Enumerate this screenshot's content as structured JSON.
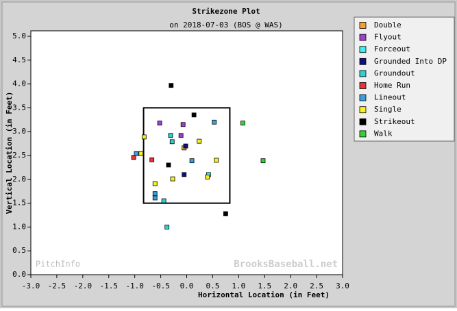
{
  "chart_data": {
    "type": "scatter",
    "title": "Strikezone Plot",
    "subtitle": "on 2018-07-03 (BOS @ WAS)",
    "x_label": "Horizontal Location (in Feet)",
    "y_label": "Vertical Location (in Feet)",
    "watermarks": [
      "PitchInfo",
      "BrooksBaseball.net"
    ],
    "xlim": [
      -3.0,
      3.0
    ],
    "ylim": [
      0.0,
      5.0
    ],
    "xticks": [
      {
        "value": -3,
        "label": "-3.0"
      },
      {
        "value": -2.5,
        "label": "-2.5"
      },
      {
        "value": -2,
        "label": "-2.0"
      },
      {
        "value": -1.5,
        "label": "-1.5"
      },
      {
        "value": -1,
        "label": "-1.0"
      },
      {
        "value": -0.5,
        "label": "-0.5"
      },
      {
        "value": 0,
        "label": "0.0"
      },
      {
        "value": 0.5,
        "label": "0.5"
      },
      {
        "value": 1,
        "label": "1.0"
      },
      {
        "value": 1.5,
        "label": "1.5"
      },
      {
        "value": 2,
        "label": "2.0"
      },
      {
        "value": 2.5,
        "label": "2.5"
      },
      {
        "value": 3,
        "label": "3.0"
      }
    ],
    "yticks": [
      {
        "value": 0,
        "label": "0.0"
      },
      {
        "value": 0.5,
        "label": "0.5"
      },
      {
        "value": 1,
        "label": "1.0"
      },
      {
        "value": 1.5,
        "label": "1.5"
      },
      {
        "value": 2,
        "label": "2.0"
      },
      {
        "value": 2.5,
        "label": "2.5"
      },
      {
        "value": 3,
        "label": "3.0"
      },
      {
        "value": 3.5,
        "label": "3.5"
      },
      {
        "value": 4,
        "label": "4.0"
      },
      {
        "value": 4.5,
        "label": "4.5"
      },
      {
        "value": 5,
        "label": "5.0"
      }
    ],
    "strike_zone": {
      "x": [
        -0.83,
        0.83
      ],
      "y": [
        1.5,
        3.5
      ]
    },
    "legend": "outside-right",
    "series": [
      {
        "name": "Double",
        "color": "#f5a030",
        "x": [
          -0.05
        ],
        "y": [
          2.66
        ]
      },
      {
        "name": "Flyout",
        "color": "#a040d0",
        "x": [
          -0.52,
          -0.07,
          -0.11
        ],
        "y": [
          3.18,
          3.15,
          2.92
        ]
      },
      {
        "name": "Forceout",
        "color": "#40f0f0",
        "x": [
          0.42
        ],
        "y": [
          2.1
        ]
      },
      {
        "name": "Grounded Into DP",
        "color": "#101080",
        "x": [
          -0.02,
          -0.05
        ],
        "y": [
          2.7,
          2.1
        ]
      },
      {
        "name": "Groundout",
        "color": "#30d0d0",
        "x": [
          -0.31,
          -0.28,
          -0.44,
          -0.38
        ],
        "y": [
          2.92,
          2.79,
          1.55,
          1.0
        ]
      },
      {
        "name": "Home Run",
        "color": "#e03838",
        "x": [
          -1.02,
          -0.67
        ],
        "y": [
          2.46,
          2.41
        ]
      },
      {
        "name": "Lineout",
        "color": "#3aa0d8",
        "x": [
          0.53,
          -0.97,
          0.1,
          -0.61,
          -0.61
        ],
        "y": [
          3.2,
          2.54,
          2.39,
          1.7,
          1.61
        ]
      },
      {
        "name": "Single",
        "color": "#f8f020",
        "x": [
          -0.82,
          0.24,
          -0.88,
          0.57,
          0.4,
          -0.27,
          -0.61
        ],
        "y": [
          2.89,
          2.8,
          2.54,
          2.4,
          2.05,
          2.01,
          1.91
        ]
      },
      {
        "name": "Strikeout",
        "color": "#000000",
        "x": [
          -0.3,
          0.14,
          -0.35,
          0.75
        ],
        "y": [
          3.97,
          3.35,
          2.3,
          1.28
        ]
      },
      {
        "name": "Walk",
        "color": "#38d038",
        "x": [
          1.08,
          1.47
        ],
        "y": [
          3.18,
          2.39
        ]
      }
    ]
  }
}
